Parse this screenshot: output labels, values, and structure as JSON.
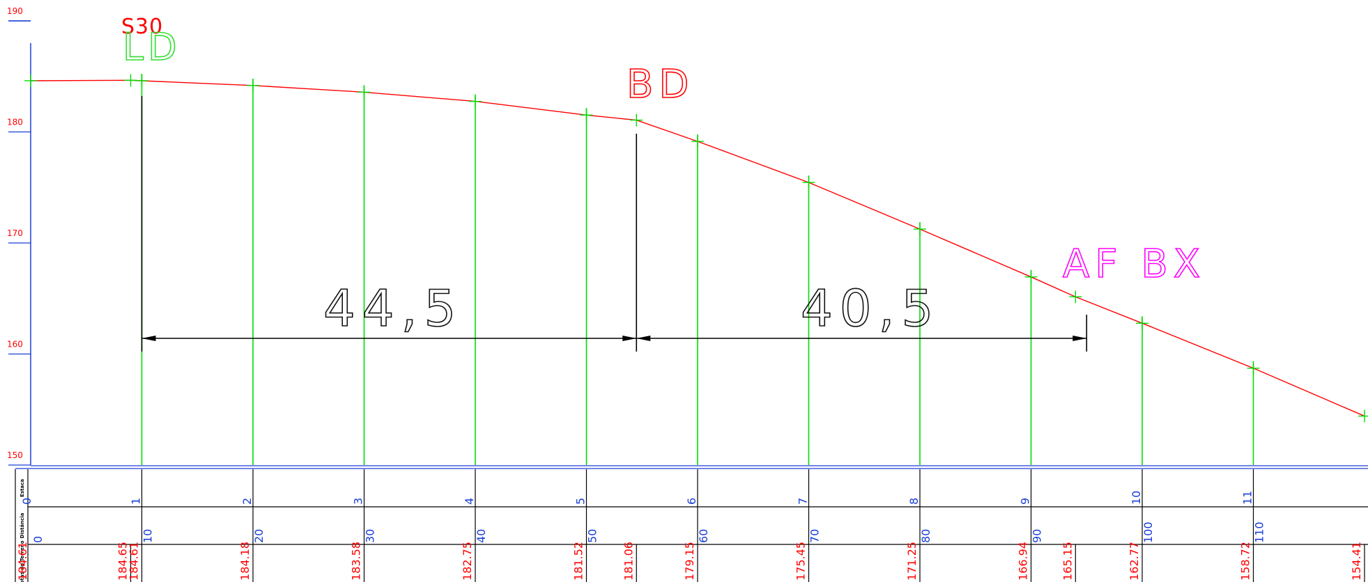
{
  "y_axis": {
    "ticks": [
      "190",
      "180",
      "170",
      "160",
      "150"
    ],
    "values": [
      190,
      180,
      170,
      160,
      150
    ],
    "min": 150,
    "max": 190
  },
  "colors": {
    "axis": "#1a3fd6",
    "ground_line": "#ff0000",
    "stations": "#00dd00",
    "dimension": "#000000",
    "text_red": "#ff0000",
    "text_blue": "#1a3fd6",
    "text_magenta": "#ff00ff",
    "text_green": "#33dd33"
  },
  "annotations": {
    "s30": "S30",
    "ld": "LD",
    "bd": "BD",
    "af_bx": "AF BX"
  },
  "dimensions": {
    "left": {
      "label": "44,5",
      "from": 10,
      "to": 54.5
    },
    "right": {
      "label": "40,5",
      "from": 54.5,
      "to": 95
    }
  },
  "table": {
    "row_labels": [
      "Estaca",
      "Distância",
      "Cotas do Terreno"
    ]
  },
  "stations": [
    {
      "estaca": "0",
      "distancia": "0",
      "x": 0,
      "elev": 184.61
    },
    {
      "estaca": "1",
      "distancia": "10",
      "x": 10,
      "elev": 184.61
    },
    {
      "estaca": "2",
      "distancia": "20",
      "x": 20,
      "elev": 184.18
    },
    {
      "estaca": "3",
      "distancia": "30",
      "x": 30,
      "elev": 183.58
    },
    {
      "estaca": "4",
      "distancia": "40",
      "x": 40,
      "elev": 182.75
    },
    {
      "estaca": "5",
      "distancia": "50",
      "x": 50,
      "elev": 181.52
    },
    {
      "estaca": "6",
      "distancia": "60",
      "x": 60,
      "elev": 179.15
    },
    {
      "estaca": "7",
      "distancia": "70",
      "x": 70,
      "elev": 175.45
    },
    {
      "estaca": "8",
      "distancia": "80",
      "x": 80,
      "elev": 171.25
    },
    {
      "estaca": "9",
      "distancia": "90",
      "x": 90,
      "elev": 166.94
    },
    {
      "estaca": "10",
      "distancia": "100",
      "x": 100,
      "elev": 162.77
    },
    {
      "estaca": "11",
      "distancia": "110",
      "x": 110,
      "elev": 158.72
    }
  ],
  "extra_points": [
    {
      "x": 9,
      "label": "184.65",
      "elev": 184.65
    },
    {
      "x": 54.5,
      "label": "181.06",
      "elev": 181.06
    },
    {
      "x": 94,
      "label": "165.15",
      "elev": 165.15
    },
    {
      "x": 120,
      "label": "154.41",
      "elev": 154.41
    }
  ],
  "elev_labels": [
    "184.61",
    "184.18",
    "183.58",
    "182.75",
    "181.52",
    "179.15",
    "175.45",
    "171.25",
    "166.94",
    "162.77",
    "158.72"
  ],
  "first_elev_label": "184.61",
  "chart_data": {
    "type": "line",
    "title": "",
    "xlabel": "",
    "ylabel": "",
    "ylim": [
      150,
      190
    ],
    "x": [
      0,
      9,
      10,
      20,
      30,
      40,
      50,
      54.5,
      60,
      70,
      80,
      90,
      94,
      100,
      110,
      120
    ],
    "series": [
      {
        "values": [
          184.61,
          184.65,
          184.61,
          184.18,
          183.58,
          182.75,
          181.52,
          181.06,
          179.15,
          175.45,
          171.25,
          166.94,
          165.15,
          162.77,
          158.72,
          154.41
        ]
      }
    ]
  }
}
